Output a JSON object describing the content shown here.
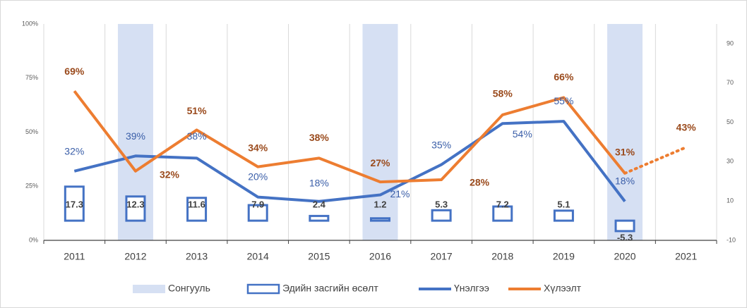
{
  "chart_data": {
    "type": "combo",
    "categories": [
      "2011",
      "2012",
      "2013",
      "2014",
      "2015",
      "2016",
      "2017",
      "2018",
      "2019",
      "2020",
      "2021"
    ],
    "ylim": [
      0,
      100
    ],
    "yticks": [
      {
        "value": 0,
        "label": "0%"
      },
      {
        "value": 25,
        "label": "25%"
      },
      {
        "value": 50,
        "label": "50%"
      },
      {
        "value": 75,
        "label": "75%"
      },
      {
        "value": 100,
        "label": "100%"
      }
    ],
    "y2lim": [
      -10,
      100
    ],
    "y2ticks": [
      -10,
      10,
      30,
      50,
      70,
      90
    ],
    "grid": "vertical",
    "legend": "bottom",
    "series": [
      {
        "name": "Сонгууль",
        "kind": "band",
        "color": "#d6e0f3",
        "values": [
          null,
          100,
          null,
          null,
          null,
          100,
          null,
          null,
          null,
          100,
          null
        ]
      },
      {
        "name": "Эдийн засгийн өсөлт",
        "kind": "bar",
        "axis": "y2",
        "color": "#4472c4",
        "label_color": "#404040",
        "values": [
          17.3,
          12.3,
          11.6,
          7.9,
          2.4,
          1.2,
          5.3,
          7.2,
          5.1,
          -5.3,
          null
        ]
      },
      {
        "name": "Үнэлгээ",
        "kind": "line",
        "color": "#4472c4",
        "label_color": "#3a5ea8",
        "values": [
          32,
          39,
          38,
          20,
          18,
          21,
          35,
          54,
          55,
          18,
          null
        ],
        "value_labels": [
          "32%",
          "39%",
          "38%",
          "20%",
          "18%",
          "21%",
          "35%",
          "54%",
          "55%",
          "18%",
          null
        ]
      },
      {
        "name": "Хүлээлт",
        "kind": "line",
        "color": "#ed7d31",
        "label_color": "#9a4a1c",
        "values": [
          69,
          32,
          51,
          34,
          38,
          27,
          28,
          58,
          66,
          31,
          43
        ],
        "value_labels": [
          "69%",
          "32%",
          "51%",
          "34%",
          "38%",
          "27%",
          "28%",
          "58%",
          "66%",
          "31%",
          "43%"
        ]
      }
    ]
  }
}
